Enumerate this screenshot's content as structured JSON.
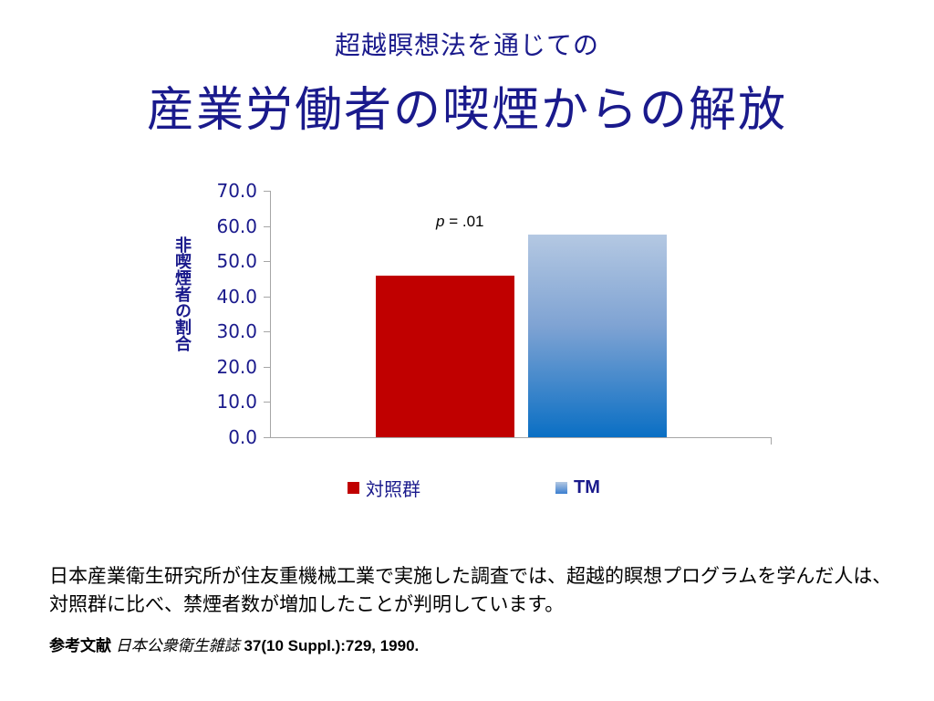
{
  "header": {
    "subtitle": "超越瞑想法を通じての",
    "title": "産業労働者の喫煙からの解放"
  },
  "chart_data": {
    "type": "bar",
    "title": "産業労働者の喫煙からの解放",
    "subtitle": "超越瞑想法を通じての",
    "xlabel": "",
    "ylabel": "非喫煙者の割合",
    "categories": [
      "対照群",
      "TM"
    ],
    "series": [
      {
        "name": "対照群",
        "values": [
          45.9
        ],
        "color": "#c00000"
      },
      {
        "name": "TM",
        "values": [
          57.6
        ],
        "color": "#0a6fc4",
        "gradient": [
          "#b4c8e2",
          "#0a6fc4"
        ]
      }
    ],
    "values": [
      45.9,
      57.6
    ],
    "ylim": [
      0,
      70
    ],
    "yticks": [
      "0.0",
      "10.0",
      "20.0",
      "30.0",
      "40.0",
      "50.0",
      "60.0",
      "70.0"
    ],
    "grid": false,
    "legend_position": "bottom",
    "annotations": [
      {
        "text_prefix": "p",
        "text_suffix": " = .01"
      }
    ]
  },
  "chart": {
    "ylabel": "非喫煙者の割合",
    "ticks": [
      "70.0",
      "60.0",
      "50.0",
      "40.0",
      "30.0",
      "20.0",
      "10.0",
      "0.0"
    ],
    "pvalue_p": "p",
    "pvalue_rest": " = .01",
    "legend": [
      {
        "label": "対照群",
        "color": "#c00000"
      },
      {
        "label": "TM",
        "color": "#5b8fd0"
      }
    ]
  },
  "body": {
    "text": "日本産業衛生研究所が住友重機械工業で実施した調査では、超越的瞑想プログラムを学んだ人は、対照群に比べ、禁煙者数が増加したことが判明しています。"
  },
  "reference": {
    "label": "参考文献",
    "journal": "日本公衆衛生雑誌",
    "citation": " 37(10 Suppl.):729, 1990."
  }
}
